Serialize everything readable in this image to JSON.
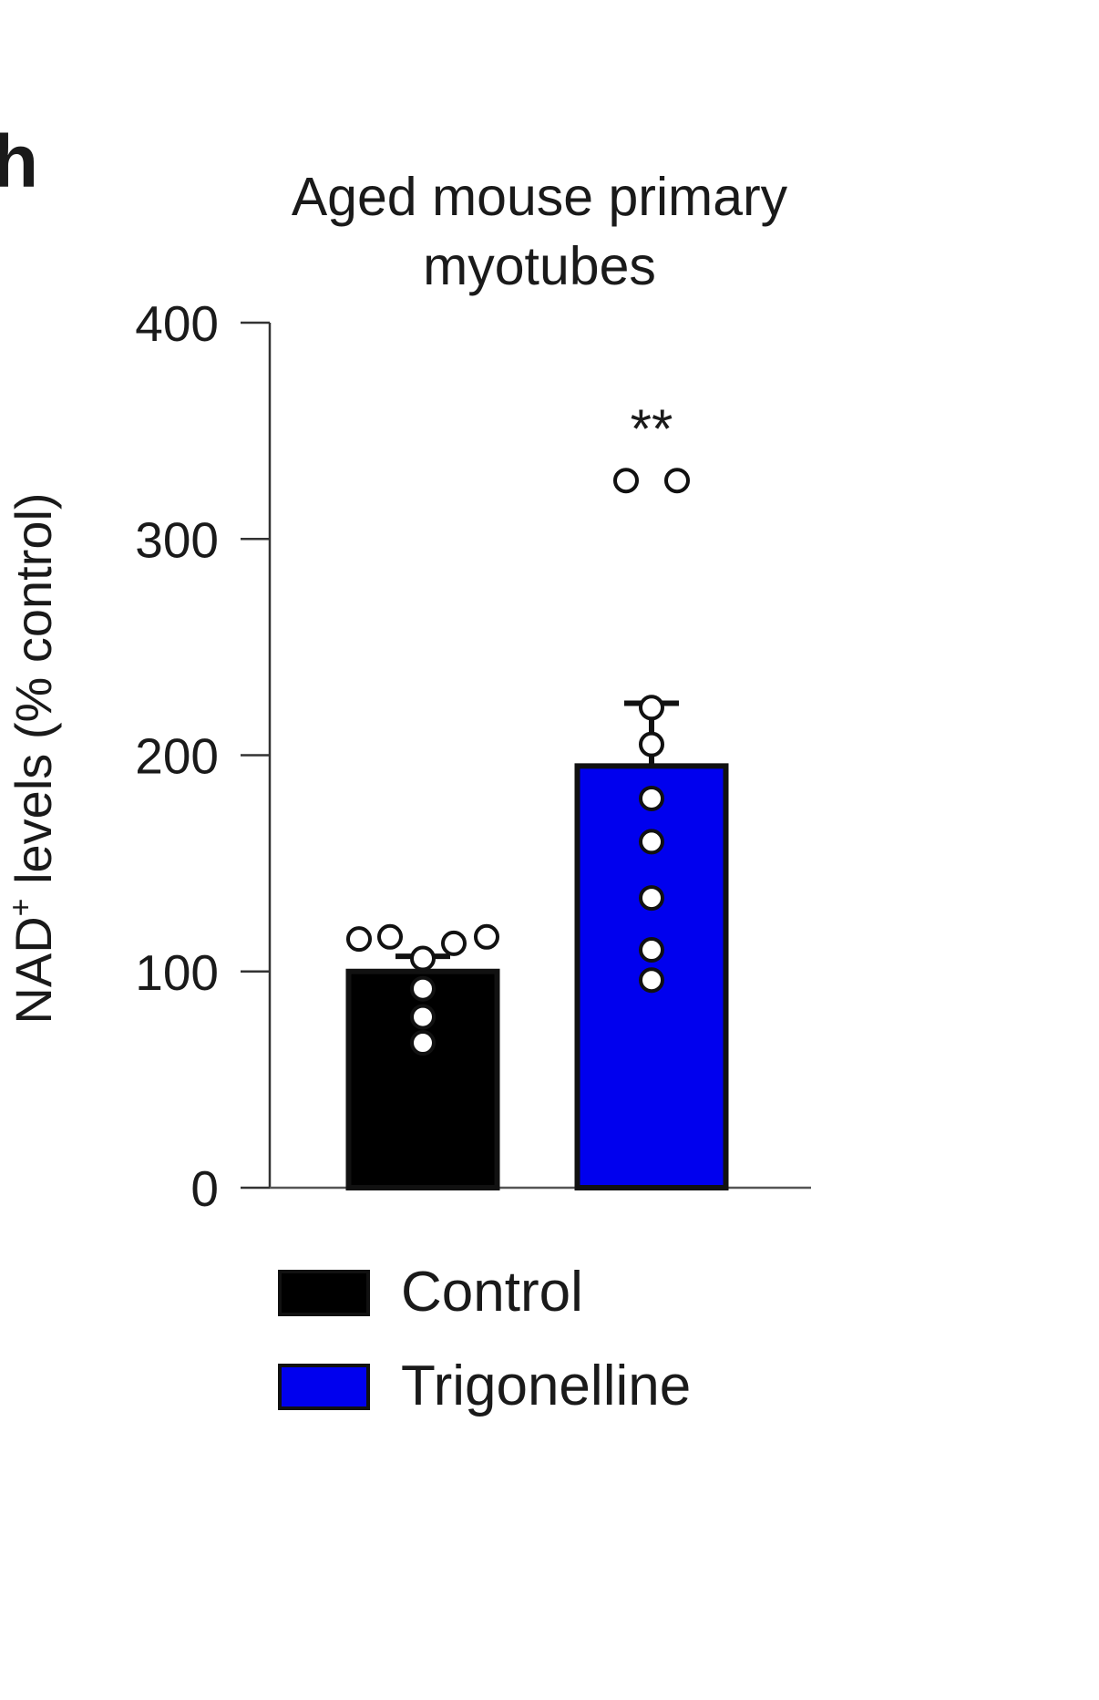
{
  "panel_label": "h",
  "chart_data": {
    "type": "bar",
    "title": "Aged mouse primary myotubes",
    "title_lines": [
      "Aged mouse primary",
      "myotubes"
    ],
    "ylabel_main": "NAD",
    "ylabel_sup": "+",
    "ylabel_rest": " levels (% control)",
    "ylim": [
      0,
      400
    ],
    "yticks": [
      0,
      100,
      200,
      300,
      400
    ],
    "grid": false,
    "legend_position": "bottom",
    "categories": [
      "Control",
      "Trigonelline"
    ],
    "series": [
      {
        "name": "Control",
        "color": "#000000",
        "mean": 100,
        "error": 7,
        "points": [
          115,
          116,
          106,
          113,
          116,
          92,
          79,
          67
        ],
        "significance": ""
      },
      {
        "name": "Trigonelline",
        "color": "#0000ee",
        "mean": 195,
        "error": 29,
        "points": [
          327,
          327,
          222,
          205,
          180,
          160,
          134,
          110,
          96
        ],
        "significance": "**"
      }
    ]
  }
}
